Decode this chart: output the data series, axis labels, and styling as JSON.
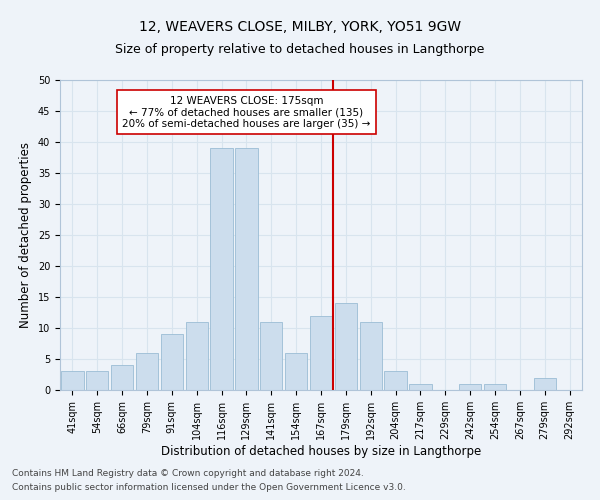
{
  "title1": "12, WEAVERS CLOSE, MILBY, YORK, YO51 9GW",
  "title2": "Size of property relative to detached houses in Langthorpe",
  "xlabel": "Distribution of detached houses by size in Langthorpe",
  "ylabel": "Number of detached properties",
  "footer1": "Contains HM Land Registry data © Crown copyright and database right 2024.",
  "footer2": "Contains public sector information licensed under the Open Government Licence v3.0.",
  "annotation_title": "12 WEAVERS CLOSE: 175sqm",
  "annotation_line1": "← 77% of detached houses are smaller (135)",
  "annotation_line2": "20% of semi-detached houses are larger (35) →",
  "bar_color": "#ccdded",
  "bar_edgecolor": "#9bbdd5",
  "vline_color": "#cc0000",
  "annotation_box_edgecolor": "#cc0000",
  "grid_color": "#d8e4ee",
  "background_color": "#eef3f9",
  "categories": [
    "41sqm",
    "54sqm",
    "66sqm",
    "79sqm",
    "91sqm",
    "104sqm",
    "116sqm",
    "129sqm",
    "141sqm",
    "154sqm",
    "167sqm",
    "179sqm",
    "192sqm",
    "204sqm",
    "217sqm",
    "229sqm",
    "242sqm",
    "254sqm",
    "267sqm",
    "279sqm",
    "292sqm"
  ],
  "values": [
    3,
    3,
    4,
    6,
    9,
    11,
    39,
    39,
    11,
    6,
    12,
    14,
    11,
    3,
    1,
    0,
    1,
    1,
    0,
    2,
    0
  ],
  "ylim": [
    0,
    50
  ],
  "yticks": [
    0,
    5,
    10,
    15,
    20,
    25,
    30,
    35,
    40,
    45,
    50
  ],
  "vline_x_index": 11,
  "title_fontsize": 10,
  "subtitle_fontsize": 9,
  "axis_label_fontsize": 8.5,
  "tick_fontsize": 7,
  "annotation_fontsize": 7.5,
  "footer_fontsize": 6.5
}
